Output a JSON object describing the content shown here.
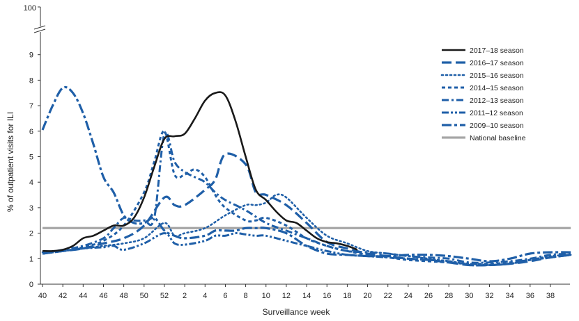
{
  "chart_data": {
    "type": "line",
    "xlabel": "Surveillance week",
    "ylabel": "% of outpatient visits for ILI",
    "ylim": [
      0,
      9
    ],
    "y_break_label": "100",
    "yticks": [
      "0",
      "1",
      "2",
      "3",
      "4",
      "5",
      "6",
      "7",
      "8",
      "9"
    ],
    "x_ticks": [
      "40",
      "42",
      "44",
      "46",
      "48",
      "50",
      "52",
      "2",
      "4",
      "6",
      "8",
      "10",
      "12",
      "14",
      "16",
      "18",
      "20",
      "22",
      "24",
      "26",
      "28",
      "30",
      "32",
      "34",
      "36",
      "38"
    ],
    "x_axis": "week index; 0 = week 40 (first week of season), 13 = week 1",
    "grid": false,
    "legend_position": "top-right",
    "series": [
      {
        "name": "2017–18 season",
        "style": "solid",
        "color": "#1a1a1a",
        "points": [
          [
            0,
            1.3
          ],
          [
            1,
            1.3
          ],
          [
            2,
            1.35
          ],
          [
            3,
            1.5
          ],
          [
            4,
            1.8
          ],
          [
            5,
            1.9
          ],
          [
            6,
            2.1
          ],
          [
            7,
            2.3
          ],
          [
            8,
            2.3
          ],
          [
            9,
            2.6
          ],
          [
            10,
            3.4
          ],
          [
            11,
            4.6
          ],
          [
            12,
            5.7
          ],
          [
            13,
            5.8
          ],
          [
            14,
            5.9
          ],
          [
            15,
            6.5
          ],
          [
            16,
            7.2
          ],
          [
            17,
            7.5
          ],
          [
            18,
            7.4
          ],
          [
            19,
            6.4
          ],
          [
            20,
            5.0
          ],
          [
            21,
            3.7
          ],
          [
            22,
            3.3
          ],
          [
            23,
            2.85
          ],
          [
            24,
            2.5
          ],
          [
            25,
            2.4
          ],
          [
            26,
            2.1
          ],
          [
            27,
            1.8
          ],
          [
            28,
            1.65
          ],
          [
            29,
            1.6
          ],
          [
            30,
            1.5
          ],
          [
            31,
            1.35
          ]
        ]
      },
      {
        "name": "2016–17 season",
        "style": "longdash",
        "color": "#1f5fa8",
        "points": [
          [
            0,
            1.2
          ],
          [
            2,
            1.3
          ],
          [
            4,
            1.4
          ],
          [
            6,
            1.6
          ],
          [
            8,
            1.8
          ],
          [
            10,
            2.3
          ],
          [
            12,
            3.4
          ],
          [
            13,
            3.1
          ],
          [
            14,
            3.1
          ],
          [
            16,
            3.7
          ],
          [
            17,
            4.1
          ],
          [
            18,
            5.1
          ],
          [
            20,
            4.7
          ],
          [
            21,
            3.6
          ],
          [
            22,
            3.5
          ],
          [
            24,
            3.1
          ],
          [
            26,
            2.4
          ],
          [
            28,
            1.65
          ],
          [
            30,
            1.4
          ],
          [
            32,
            1.2
          ],
          [
            34,
            1.1
          ],
          [
            36,
            1.0
          ],
          [
            38,
            0.95
          ],
          [
            40,
            0.85
          ],
          [
            42,
            0.75
          ],
          [
            44,
            0.75
          ],
          [
            46,
            0.8
          ],
          [
            48,
            0.9
          ],
          [
            50,
            1.05
          ],
          [
            52,
            1.15
          ]
        ]
      },
      {
        "name": "2015–16 season",
        "style": "dotted",
        "color": "#1f5fa8",
        "points": [
          [
            0,
            1.25
          ],
          [
            2,
            1.3
          ],
          [
            4,
            1.4
          ],
          [
            6,
            1.5
          ],
          [
            8,
            1.6
          ],
          [
            10,
            1.8
          ],
          [
            12,
            2.4
          ],
          [
            13,
            1.9
          ],
          [
            14,
            2.0
          ],
          [
            16,
            2.2
          ],
          [
            18,
            2.7
          ],
          [
            20,
            3.1
          ],
          [
            21,
            3.1
          ],
          [
            22,
            3.2
          ],
          [
            23,
            3.5
          ],
          [
            24,
            3.4
          ],
          [
            26,
            2.6
          ],
          [
            28,
            1.9
          ],
          [
            30,
            1.6
          ],
          [
            32,
            1.3
          ],
          [
            34,
            1.2
          ],
          [
            36,
            1.1
          ],
          [
            38,
            1.0
          ],
          [
            40,
            0.9
          ],
          [
            42,
            0.8
          ],
          [
            44,
            0.75
          ],
          [
            46,
            0.8
          ],
          [
            48,
            0.95
          ],
          [
            50,
            1.1
          ],
          [
            52,
            1.15
          ]
        ]
      },
      {
        "name": "2014–15 season",
        "style": "shortdash",
        "color": "#1f5fa8",
        "points": [
          [
            0,
            1.2
          ],
          [
            2,
            1.3
          ],
          [
            4,
            1.45
          ],
          [
            6,
            1.7
          ],
          [
            8,
            2.3
          ],
          [
            10,
            3.6
          ],
          [
            11,
            4.8
          ],
          [
            12,
            6.0
          ],
          [
            13,
            4.3
          ],
          [
            14,
            4.3
          ],
          [
            15,
            4.5
          ],
          [
            16,
            4.2
          ],
          [
            17,
            3.5
          ],
          [
            18,
            3.0
          ],
          [
            20,
            2.5
          ],
          [
            21,
            2.5
          ],
          [
            22,
            2.6
          ],
          [
            24,
            2.3
          ],
          [
            26,
            1.8
          ],
          [
            28,
            1.5
          ],
          [
            30,
            1.3
          ],
          [
            32,
            1.15
          ],
          [
            34,
            1.05
          ],
          [
            36,
            0.95
          ],
          [
            38,
            0.9
          ],
          [
            40,
            0.85
          ],
          [
            42,
            0.8
          ],
          [
            44,
            0.8
          ],
          [
            46,
            0.85
          ],
          [
            48,
            0.95
          ],
          [
            50,
            1.05
          ],
          [
            52,
            1.15
          ]
        ]
      },
      {
        "name": "2012–13 season",
        "style": "dashdot",
        "color": "#1f5fa8",
        "points": [
          [
            0,
            1.2
          ],
          [
            2,
            1.35
          ],
          [
            4,
            1.5
          ],
          [
            6,
            1.8
          ],
          [
            7,
            2.2
          ],
          [
            8,
            2.6
          ],
          [
            9,
            2.5
          ],
          [
            10,
            2.5
          ],
          [
            11,
            2.6
          ],
          [
            12,
            5.9
          ],
          [
            13,
            4.8
          ],
          [
            14,
            4.4
          ],
          [
            15,
            4.2
          ],
          [
            16,
            4.0
          ],
          [
            17,
            3.6
          ],
          [
            18,
            3.3
          ],
          [
            20,
            2.9
          ],
          [
            22,
            2.4
          ],
          [
            24,
            2.1
          ],
          [
            26,
            1.8
          ],
          [
            28,
            1.5
          ],
          [
            30,
            1.3
          ],
          [
            32,
            1.25
          ],
          [
            34,
            1.2
          ],
          [
            36,
            1.1
          ],
          [
            38,
            1.05
          ],
          [
            40,
            1.0
          ],
          [
            42,
            0.85
          ],
          [
            44,
            0.85
          ],
          [
            46,
            0.9
          ],
          [
            48,
            1.0
          ],
          [
            50,
            1.15
          ],
          [
            52,
            1.2
          ]
        ]
      },
      {
        "name": "2011–12 season",
        "style": "dashdotdot",
        "color": "#1f5fa8",
        "points": [
          [
            0,
            1.2
          ],
          [
            2,
            1.3
          ],
          [
            4,
            1.4
          ],
          [
            6,
            1.45
          ],
          [
            7,
            1.5
          ],
          [
            8,
            1.35
          ],
          [
            10,
            1.6
          ],
          [
            12,
            2.0
          ],
          [
            13,
            1.6
          ],
          [
            14,
            1.55
          ],
          [
            16,
            1.7
          ],
          [
            17,
            1.9
          ],
          [
            18,
            1.9
          ],
          [
            19,
            2.0
          ],
          [
            20,
            1.95
          ],
          [
            21,
            1.9
          ],
          [
            22,
            1.9
          ],
          [
            24,
            1.7
          ],
          [
            26,
            1.5
          ],
          [
            28,
            1.3
          ],
          [
            30,
            1.15
          ],
          [
            32,
            1.1
          ],
          [
            34,
            1.05
          ],
          [
            36,
            1.0
          ],
          [
            38,
            0.95
          ],
          [
            40,
            0.9
          ],
          [
            42,
            0.75
          ],
          [
            44,
            0.75
          ],
          [
            46,
            0.8
          ],
          [
            48,
            0.95
          ],
          [
            50,
            1.05
          ],
          [
            52,
            1.15
          ]
        ]
      },
      {
        "name": "2009–10 season",
        "style": "longdashdot",
        "color": "#1f5fa8",
        "points": [
          [
            0,
            6.05
          ],
          [
            1,
            7.0
          ],
          [
            2,
            7.7
          ],
          [
            3,
            7.5
          ],
          [
            4,
            6.7
          ],
          [
            5,
            5.5
          ],
          [
            6,
            4.2
          ],
          [
            7,
            3.6
          ],
          [
            8,
            2.7
          ],
          [
            9,
            2.4
          ],
          [
            10,
            2.4
          ],
          [
            11,
            2.6
          ],
          [
            12,
            2.1
          ],
          [
            13,
            1.9
          ],
          [
            14,
            1.8
          ],
          [
            16,
            1.9
          ],
          [
            17,
            2.1
          ],
          [
            18,
            2.1
          ],
          [
            19,
            2.1
          ],
          [
            20,
            2.2
          ],
          [
            21,
            2.2
          ],
          [
            22,
            2.2
          ],
          [
            24,
            2.0
          ],
          [
            26,
            1.5
          ],
          [
            28,
            1.2
          ],
          [
            30,
            1.15
          ],
          [
            32,
            1.1
          ],
          [
            34,
            1.1
          ],
          [
            36,
            1.15
          ],
          [
            38,
            1.15
          ],
          [
            40,
            1.1
          ],
          [
            42,
            1.0
          ],
          [
            44,
            0.9
          ],
          [
            46,
            1.0
          ],
          [
            48,
            1.2
          ],
          [
            50,
            1.25
          ],
          [
            52,
            1.25
          ]
        ]
      },
      {
        "name": "National baseline",
        "style": "baseline",
        "color": "#a6a6a6",
        "points": [
          [
            0,
            2.2
          ],
          [
            52,
            2.2
          ]
        ]
      }
    ]
  }
}
